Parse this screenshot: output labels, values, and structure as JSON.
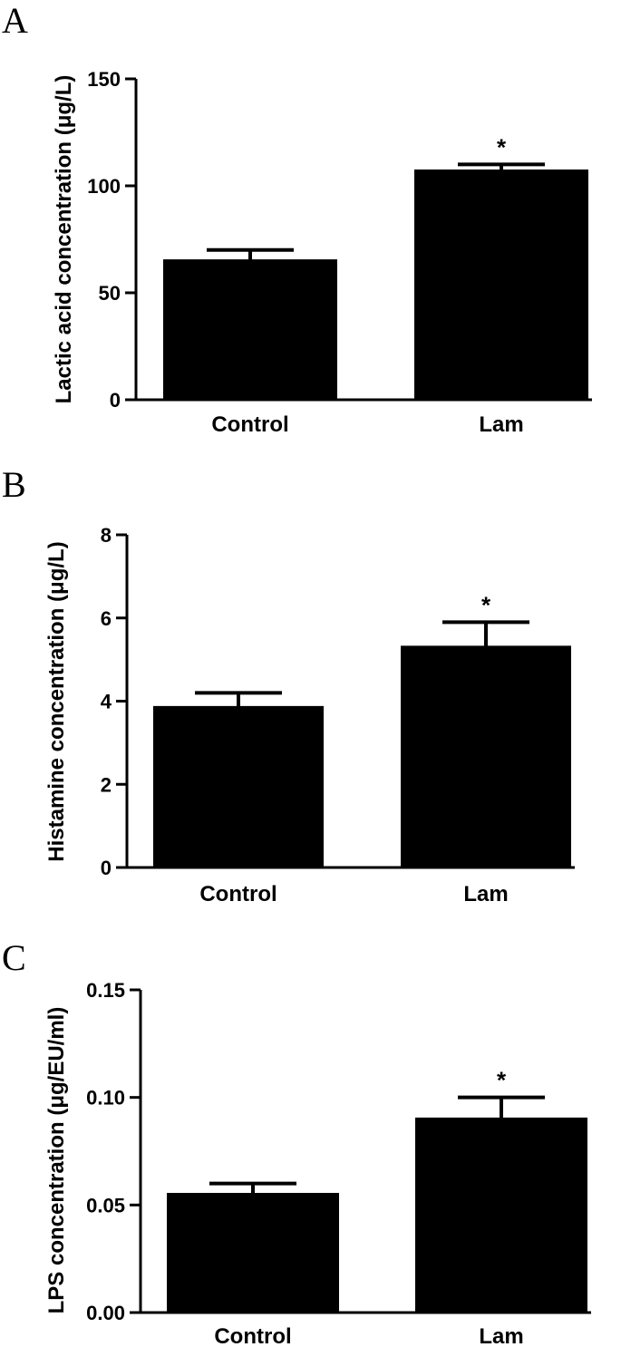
{
  "chart_data": [
    {
      "type": "bar",
      "panel": "A",
      "categories": [
        "Control",
        "Lam"
      ],
      "values": [
        65,
        107
      ],
      "errors": [
        5,
        3
      ],
      "annotations": [
        "",
        "*"
      ],
      "ylabel": "Lactic acid concentration  (μg/L)",
      "ylim": [
        0,
        150
      ],
      "yticks": [
        0,
        50,
        100,
        150
      ],
      "ytick_labels": [
        "0",
        "50",
        "100",
        "150"
      ],
      "bar_color": "#000000",
      "grid": false
    },
    {
      "type": "bar",
      "panel": "B",
      "categories": [
        "Control",
        "Lam"
      ],
      "values": [
        3.85,
        5.3
      ],
      "errors": [
        0.35,
        0.6
      ],
      "annotations": [
        "",
        "*"
      ],
      "ylabel": "Histamine concentration  (μg/L)",
      "ylim": [
        0,
        8
      ],
      "yticks": [
        0,
        2,
        4,
        6,
        8
      ],
      "ytick_labels": [
        "0",
        "2",
        "4",
        "6",
        "8"
      ],
      "bar_color": "#000000",
      "grid": false
    },
    {
      "type": "bar",
      "panel": "C",
      "categories": [
        "Control",
        "Lam"
      ],
      "values": [
        0.055,
        0.09
      ],
      "errors": [
        0.005,
        0.01
      ],
      "annotations": [
        "",
        "*"
      ],
      "ylabel": "LPS concentration  (μg/EU/ml)",
      "ylim": [
        0,
        0.15
      ],
      "yticks": [
        0,
        0.05,
        0.1,
        0.15
      ],
      "ytick_labels": [
        "0.00",
        "0.05",
        "0.10",
        "0.15"
      ],
      "bar_color": "#000000",
      "grid": false
    }
  ]
}
